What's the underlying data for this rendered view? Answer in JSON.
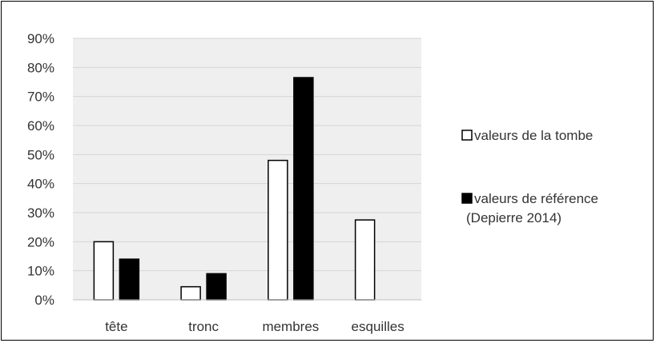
{
  "chart_data": {
    "type": "bar",
    "categories": [
      "tête",
      "tronc",
      "membres",
      "esquilles"
    ],
    "series": [
      {
        "name": "valeurs de la tombe",
        "values": [
          20,
          4.5,
          48,
          27.5
        ],
        "fill": "#ffffff",
        "stroke": "#000000"
      },
      {
        "name": "valeurs de référence (Depierre 2014)",
        "name_lines": [
          "valeurs de référence",
          "(Depierre 2014)"
        ],
        "values": [
          14,
          9,
          76.5,
          null
        ],
        "fill": "#000000",
        "stroke": "#000000"
      }
    ],
    "ylim": [
      0,
      90
    ],
    "yticks": [
      0,
      10,
      20,
      30,
      40,
      50,
      60,
      70,
      80,
      90
    ],
    "ytick_labels": [
      "0%",
      "10%",
      "20%",
      "30%",
      "40%",
      "50%",
      "60%",
      "70%",
      "80%",
      "90%"
    ],
    "ylabel": "",
    "xlabel": "",
    "title": "",
    "grid": true,
    "plot_background": "#efefef",
    "legend_position": "right"
  }
}
